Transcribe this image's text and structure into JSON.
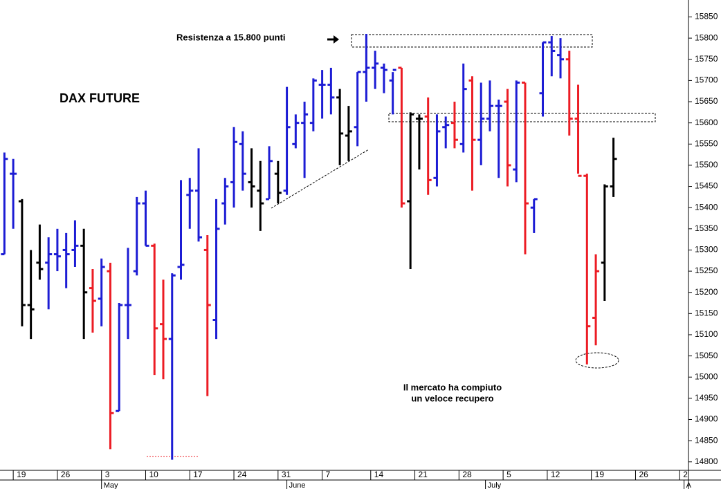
{
  "chart_data": {
    "type": "ohlc",
    "title": "DAX FUTURE",
    "annotations": [
      "Resistenza a 15.800 punti",
      "Il mercato ha compiuto",
      "un veloce recupero"
    ],
    "open": [
      15290,
      15480,
      15415,
      15170,
      15270,
      15270,
      15290,
      15300,
      15300,
      15310,
      15210,
      15185,
      15250,
      14920,
      15170,
      15250,
      15410,
      15310,
      15125,
      15090,
      15260,
      15430,
      15440,
      15300,
      15135,
      15410,
      15460,
      15550,
      15460,
      15440,
      15420,
      15480,
      15440,
      15550,
      15600,
      15600,
      15690,
      15690,
      15660,
      15570,
      15590,
      15720,
      15730,
      15730,
      15700,
      15730,
      15415,
      15610,
      15615,
      15470,
      15590,
      15600,
      15550,
      15700,
      15560,
      15610,
      15640,
      15650,
      15490,
      15695,
      15400,
      15670,
      15790,
      15760,
      15750,
      15610,
      15475,
      15140,
      15270,
      15450
    ],
    "high": [
      15530,
      15515,
      15420,
      15300,
      15360,
      15330,
      15350,
      15340,
      15370,
      15350,
      15255,
      15280,
      15270,
      15175,
      15305,
      15425,
      15440,
      15315,
      15230,
      15245,
      15465,
      15470,
      15540,
      15335,
      15420,
      15470,
      15590,
      15580,
      15540,
      15510,
      15545,
      15510,
      15685,
      15620,
      15650,
      15705,
      15725,
      15730,
      15680,
      15640,
      15720,
      15810,
      15770,
      15740,
      15720,
      15730,
      15625,
      15620,
      15660,
      15620,
      15615,
      15650,
      15740,
      15710,
      15695,
      15700,
      15655,
      15680,
      15700,
      15695,
      15420,
      15790,
      15805,
      15800,
      15770,
      15690,
      15480,
      15290,
      15455,
      15565
    ],
    "low": [
      15290,
      15350,
      15120,
      15090,
      15230,
      15160,
      15250,
      15210,
      15260,
      15090,
      15105,
      15120,
      14830,
      14920,
      15090,
      15240,
      15310,
      15005,
      14995,
      14805,
      15230,
      15350,
      15320,
      14955,
      15090,
      15360,
      15400,
      15440,
      15400,
      15345,
      15420,
      15410,
      15430,
      15540,
      15470,
      15580,
      15610,
      15620,
      15500,
      15510,
      15545,
      15650,
      15680,
      15670,
      15620,
      15400,
      15255,
      15490,
      15430,
      15450,
      15540,
      15540,
      15530,
      15440,
      15500,
      15580,
      15470,
      15450,
      15460,
      15290,
      15340,
      15615,
      15710,
      15705,
      15570,
      15480,
      15030,
      15075,
      15180,
      15425
    ],
    "close": [
      15515,
      15480,
      15170,
      15160,
      15255,
      15290,
      15285,
      15290,
      15310,
      15200,
      15180,
      15260,
      14915,
      15170,
      15170,
      15410,
      15310,
      15115,
      15090,
      15240,
      15265,
      15440,
      15330,
      15170,
      15350,
      15450,
      15555,
      15480,
      15450,
      15410,
      15510,
      15435,
      15590,
      15600,
      15620,
      15700,
      15690,
      15660,
      15575,
      15580,
      15720,
      15730,
      15740,
      15725,
      15725,
      15410,
      15620,
      15610,
      15465,
      15580,
      15595,
      15560,
      15680,
      15560,
      15610,
      15640,
      15640,
      15500,
      15695,
      15410,
      15420,
      15790,
      15770,
      15750,
      15610,
      15475,
      15120,
      15250,
      15450,
      15515
    ],
    "colors": [
      "#1c1cd4",
      "#1c1cd4",
      "#000000",
      "#000000",
      "#000000",
      "#1c1cd4",
      "#1c1cd4",
      "#1c1cd4",
      "#1c1cd4",
      "#000000",
      "#ec1c24",
      "#1c1cd4",
      "#ec1c24",
      "#1c1cd4",
      "#1c1cd4",
      "#1c1cd4",
      "#1c1cd4",
      "#ec1c24",
      "#ec1c24",
      "#1c1cd4",
      "#1c1cd4",
      "#1c1cd4",
      "#1c1cd4",
      "#ec1c24",
      "#1c1cd4",
      "#1c1cd4",
      "#1c1cd4",
      "#1c1cd4",
      "#000000",
      "#000000",
      "#1c1cd4",
      "#000000",
      "#1c1cd4",
      "#1c1cd4",
      "#1c1cd4",
      "#1c1cd4",
      "#1c1cd4",
      "#1c1cd4",
      "#000000",
      "#000000",
      "#1c1cd4",
      "#1c1cd4",
      "#1c1cd4",
      "#1c1cd4",
      "#1c1cd4",
      "#ec1c24",
      "#000000",
      "#000000",
      "#ec1c24",
      "#1c1cd4",
      "#1c1cd4",
      "#ec1c24",
      "#1c1cd4",
      "#ec1c24",
      "#1c1cd4",
      "#1c1cd4",
      "#1c1cd4",
      "#ec1c24",
      "#1c1cd4",
      "#ec1c24",
      "#1c1cd4",
      "#1c1cd4",
      "#1c1cd4",
      "#1c1cd4",
      "#ec1c24",
      "#ec1c24",
      "#ec1c24",
      "#ec1c24",
      "#000000",
      "#000000"
    ],
    "xlim": [
      -0.5,
      77.5
    ],
    "xticks": [
      {
        "value": 1,
        "label": "19"
      },
      {
        "value": 6,
        "label": "26"
      },
      {
        "value": 11,
        "label": "3"
      },
      {
        "value": 16,
        "label": "10"
      },
      {
        "value": 21,
        "label": "17"
      },
      {
        "value": 26,
        "label": "24"
      },
      {
        "value": 31,
        "label": "31"
      },
      {
        "value": 36,
        "label": "7"
      },
      {
        "value": 41.5,
        "label": "14"
      },
      {
        "value": 46.5,
        "label": "21"
      },
      {
        "value": 51.5,
        "label": "28"
      },
      {
        "value": 56.5,
        "label": "5"
      },
      {
        "value": 61.5,
        "label": "12"
      },
      {
        "value": 66.5,
        "label": "19"
      },
      {
        "value": 71.5,
        "label": "26"
      },
      {
        "value": 76.5,
        "label": "2"
      }
    ],
    "month_ticks": [
      {
        "value": 11,
        "label": "May"
      },
      {
        "value": 32,
        "label": "June"
      },
      {
        "value": 54.5,
        "label": "July"
      },
      {
        "value": 77,
        "label": "A"
      }
    ],
    "ylim": [
      14780,
      15890
    ],
    "yticks": [
      14800,
      14850,
      14900,
      14950,
      15000,
      15050,
      15100,
      15150,
      15200,
      15250,
      15300,
      15350,
      15400,
      15450,
      15500,
      15550,
      15600,
      15650,
      15700,
      15750,
      15800,
      15850
    ],
    "grid": false
  }
}
